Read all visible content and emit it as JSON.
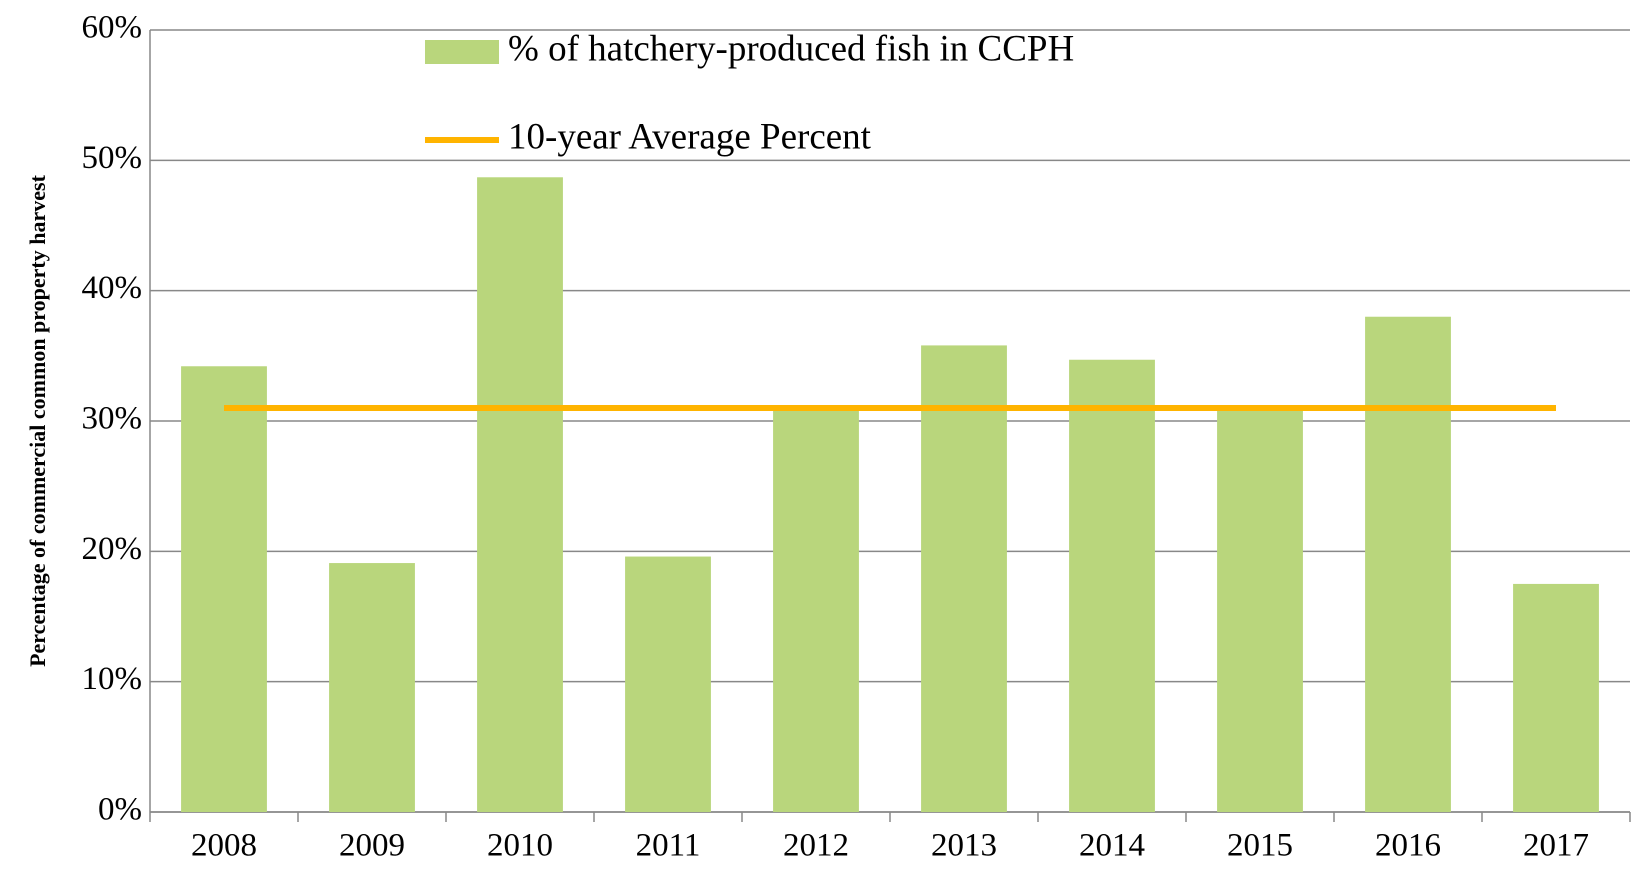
{
  "chart_data": {
    "type": "bar",
    "y_label": "Percentage of commercial common property harvest",
    "categories": [
      "2008",
      "2009",
      "2010",
      "2011",
      "2012",
      "2013",
      "2014",
      "2015",
      "2016",
      "2017"
    ],
    "series": [
      {
        "name": "% of hatchery-produced fish in CCPH",
        "type": "bar",
        "color": "#b9d67c",
        "values": [
          34.2,
          19.1,
          48.7,
          19.6,
          31.0,
          35.8,
          34.7,
          31.0,
          38.0,
          17.5
        ]
      },
      {
        "name": "10-year Average Percent",
        "type": "line",
        "color": "#ffb400",
        "values": [
          31.0,
          31.0,
          31.0,
          31.0,
          31.0,
          31.0,
          31.0,
          31.0,
          31.0,
          31.0
        ]
      }
    ],
    "ylim": [
      0,
      60
    ],
    "yticks": [
      {
        "value": 0,
        "label": "0%"
      },
      {
        "value": 10,
        "label": "10%"
      },
      {
        "value": 20,
        "label": "20%"
      },
      {
        "value": 30,
        "label": "30%"
      },
      {
        "value": 40,
        "label": "40%"
      },
      {
        "value": 50,
        "label": "50%"
      },
      {
        "value": 60,
        "label": "60%"
      }
    ],
    "grid": true
  }
}
